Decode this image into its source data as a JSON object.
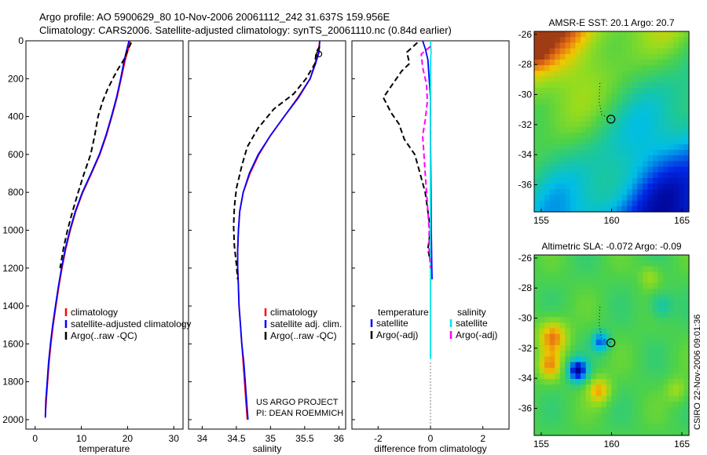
{
  "figure": {
    "title_line1": "Argo profile: AO 5900629_80 10-Nov-2006 20061112_242 31.637S 159.956E",
    "title_line2": "Climatology: CARS2006. Satellite-adjusted climatology: synTS_20061110.nc (0.84d earlier)",
    "side_label": "CSIRO 22-Nov-2006 09:01:36",
    "project_line1": "US ARGO PROJECT",
    "project_line2": "PI: DEAN ROEMMICH"
  },
  "colors": {
    "climatology": "#ff0000",
    "satellite": "#0000ff",
    "argo": "#000000",
    "sal_satellite": "#00e5e5",
    "sal_argo": "#ff00ff"
  },
  "chart_data": [
    {
      "id": "temperature",
      "type": "line",
      "xlabel": "temperature",
      "ylabel": "",
      "xlim": [
        -2,
        32
      ],
      "ylim": [
        0,
        2050
      ],
      "y_reversed": true,
      "x_ticks": [
        0,
        10,
        20,
        30
      ],
      "y_ticks": [
        0,
        200,
        400,
        600,
        800,
        1000,
        1200,
        1400,
        1600,
        1800,
        2000
      ],
      "legend": [
        "climatology",
        "satellite-adjusted climatology",
        "Argo(..raw -QC)"
      ],
      "series": [
        {
          "name": "climatology",
          "style": "solid",
          "color": "#ff0000",
          "points": [
            [
              20.6,
              0
            ],
            [
              20.2,
              40
            ],
            [
              19.5,
              100
            ],
            [
              18.6,
              200
            ],
            [
              17.7,
              300
            ],
            [
              16.6,
              400
            ],
            [
              15.4,
              500
            ],
            [
              14.0,
              600
            ],
            [
              12.2,
              700
            ],
            [
              10.3,
              800
            ],
            [
              8.8,
              900
            ],
            [
              7.6,
              1000
            ],
            [
              6.6,
              1100
            ],
            [
              5.8,
              1200
            ],
            [
              5.1,
              1300
            ],
            [
              4.5,
              1400
            ],
            [
              3.9,
              1500
            ],
            [
              3.4,
              1600
            ],
            [
              3.0,
              1700
            ],
            [
              2.7,
              1800
            ],
            [
              2.4,
              1900
            ],
            [
              2.2,
              1980
            ]
          ]
        },
        {
          "name": "satellite-adjusted climatology",
          "style": "solid",
          "color": "#0000ff",
          "points": [
            [
              20.3,
              0
            ],
            [
              19.9,
              40
            ],
            [
              19.3,
              100
            ],
            [
              18.5,
              200
            ],
            [
              17.6,
              300
            ],
            [
              16.5,
              400
            ],
            [
              15.3,
              500
            ],
            [
              13.9,
              600
            ],
            [
              12.1,
              700
            ],
            [
              10.2,
              800
            ],
            [
              8.7,
              900
            ],
            [
              7.5,
              1000
            ],
            [
              6.5,
              1100
            ],
            [
              5.7,
              1200
            ],
            [
              5.0,
              1300
            ],
            [
              4.4,
              1400
            ],
            [
              3.8,
              1500
            ],
            [
              3.3,
              1600
            ],
            [
              2.9,
              1700
            ],
            [
              2.6,
              1800
            ],
            [
              2.3,
              1900
            ],
            [
              2.2,
              1990
            ]
          ]
        },
        {
          "name": "Argo(..raw -QC)",
          "style": "dashed",
          "color": "#000000",
          "points": [
            [
              20.8,
              10
            ],
            [
              20.0,
              50
            ],
            [
              19.2,
              100
            ],
            [
              17.9,
              150
            ],
            [
              16.8,
              200
            ],
            [
              15.6,
              260
            ],
            [
              14.6,
              320
            ],
            [
              13.6,
              400
            ],
            [
              12.9,
              500
            ],
            [
              12.0,
              600
            ],
            [
              10.6,
              700
            ],
            [
              9.3,
              800
            ],
            [
              8.1,
              900
            ],
            [
              7.0,
              1000
            ],
            [
              6.1,
              1100
            ],
            [
              5.4,
              1200
            ]
          ]
        }
      ]
    },
    {
      "id": "salinity",
      "type": "line",
      "xlabel": "salinity",
      "ylabel": "",
      "xlim": [
        33.8,
        36.1
      ],
      "ylim": [
        0,
        2050
      ],
      "y_reversed": true,
      "x_ticks": [
        34,
        34.5,
        35,
        35.5,
        36
      ],
      "legend": [
        "climatology",
        "satellite adj. clim.",
        "Argo(..raw -QC)"
      ],
      "series": [
        {
          "name": "climatology",
          "style": "solid",
          "color": "#ff0000",
          "points": [
            [
              35.72,
              0
            ],
            [
              35.7,
              60
            ],
            [
              35.65,
              120
            ],
            [
              35.58,
              200
            ],
            [
              35.4,
              300
            ],
            [
              35.2,
              400
            ],
            [
              35.0,
              500
            ],
            [
              34.83,
              600
            ],
            [
              34.7,
              700
            ],
            [
              34.6,
              800
            ],
            [
              34.55,
              900
            ],
            [
              34.53,
              1000
            ],
            [
              34.52,
              1100
            ],
            [
              34.52,
              1200
            ],
            [
              34.53,
              1300
            ],
            [
              34.54,
              1400
            ],
            [
              34.56,
              1500
            ],
            [
              34.58,
              1600
            ],
            [
              34.6,
              1700
            ],
            [
              34.62,
              1800
            ],
            [
              34.64,
              1900
            ],
            [
              34.66,
              2000
            ]
          ]
        },
        {
          "name": "satellite adj. clim.",
          "style": "solid",
          "color": "#0000ff",
          "points": [
            [
              35.72,
              0
            ],
            [
              35.71,
              60
            ],
            [
              35.66,
              120
            ],
            [
              35.58,
              200
            ],
            [
              35.41,
              300
            ],
            [
              35.2,
              400
            ],
            [
              35.0,
              500
            ],
            [
              34.82,
              600
            ],
            [
              34.69,
              700
            ],
            [
              34.6,
              800
            ],
            [
              34.55,
              900
            ],
            [
              34.53,
              1000
            ],
            [
              34.52,
              1100
            ],
            [
              34.52,
              1200
            ],
            [
              34.53,
              1300
            ],
            [
              34.54,
              1400
            ],
            [
              34.56,
              1500
            ],
            [
              34.58,
              1600
            ],
            [
              34.61,
              1700
            ],
            [
              34.63,
              1800
            ],
            [
              34.65,
              1900
            ],
            [
              34.67,
              2000
            ]
          ]
        },
        {
          "name": "Argo(..raw -QC)",
          "style": "dashed",
          "color": "#000000",
          "points": [
            [
              35.72,
              30
            ],
            [
              35.67,
              60
            ],
            [
              35.65,
              120
            ],
            [
              35.52,
              200
            ],
            [
              35.34,
              280
            ],
            [
              35.05,
              360
            ],
            [
              34.82,
              460
            ],
            [
              34.66,
              560
            ],
            [
              34.58,
              660
            ],
            [
              34.5,
              780
            ],
            [
              34.47,
              880
            ],
            [
              34.46,
              980
            ],
            [
              34.47,
              1080
            ],
            [
              34.5,
              1180
            ],
            [
              34.52,
              1260
            ]
          ]
        }
      ]
    },
    {
      "id": "difference",
      "type": "line",
      "xlabel": "difference from climatology",
      "ylabel": "",
      "xlim": [
        -3,
        3
      ],
      "ylim": [
        0,
        2050
      ],
      "y_reversed": true,
      "x_ticks": [
        -2,
        0,
        2
      ],
      "legend_temperature_header": "temperature",
      "legend_salinity_header": "salinity",
      "legend": [
        "satellite",
        "Argo(-adj)",
        "satellite",
        "Argo(-adj)"
      ],
      "series": [
        {
          "name": "temperature satellite",
          "style": "solid",
          "color": "#0000ff",
          "points": [
            [
              -0.3,
              0
            ],
            [
              -0.2,
              40
            ],
            [
              -0.1,
              100
            ],
            [
              -0.05,
              200
            ],
            [
              0.0,
              300
            ],
            [
              0.0,
              500
            ],
            [
              0.02,
              800
            ],
            [
              0.03,
              1000
            ],
            [
              0.05,
              1200
            ],
            [
              0.06,
              1260
            ]
          ]
        },
        {
          "name": "temperature Argo(-adj)",
          "style": "dashed",
          "color": "#000000",
          "points": [
            [
              -0.5,
              10
            ],
            [
              -0.9,
              60
            ],
            [
              -0.8,
              120
            ],
            [
              -1.1,
              160
            ],
            [
              -1.8,
              300
            ],
            [
              -1.5,
              380
            ],
            [
              -1.2,
              440
            ],
            [
              -1.0,
              520
            ],
            [
              -0.6,
              600
            ],
            [
              -0.4,
              700
            ],
            [
              -0.2,
              800
            ],
            [
              -0.1,
              900
            ],
            [
              0.0,
              1000
            ],
            [
              -0.1,
              1100
            ],
            [
              0.05,
              1200
            ]
          ]
        },
        {
          "name": "salinity satellite",
          "style": "solid",
          "color": "#00e5e5",
          "points": [
            [
              0.0,
              0
            ],
            [
              0.02,
              60
            ],
            [
              0.0,
              120
            ],
            [
              0.0,
              200
            ],
            [
              0.0,
              400
            ],
            [
              0.0,
              800
            ],
            [
              0.0,
              1200
            ],
            [
              0.0,
              1600
            ],
            [
              0.0,
              1680
            ]
          ]
        },
        {
          "name": "salinity Argo(-adj)",
          "style": "dashed",
          "color": "#ff00ff",
          "points": [
            [
              0.0,
              30
            ],
            [
              -0.35,
              70
            ],
            [
              -0.3,
              140
            ],
            [
              -0.15,
              230
            ],
            [
              -0.12,
              320
            ],
            [
              -0.2,
              420
            ],
            [
              -0.3,
              500
            ],
            [
              -0.25,
              600
            ],
            [
              -0.2,
              700
            ],
            [
              -0.15,
              800
            ],
            [
              -0.1,
              900
            ],
            [
              -0.05,
              1000
            ],
            [
              -0.05,
              1100
            ],
            [
              0.0,
              1200
            ]
          ]
        }
      ]
    },
    {
      "id": "amsr",
      "type": "heatmap",
      "title": "AMSR-E SST: 20.1  Argo: 20.7",
      "xlim": [
        154.5,
        165.5
      ],
      "ylim": [
        -37.8,
        -25.8
      ],
      "x_ticks": [
        155,
        160,
        165
      ],
      "y_ticks": [
        -26,
        -28,
        -30,
        -32,
        -34,
        -36
      ],
      "marker": [
        159.956,
        -31.637
      ]
    },
    {
      "id": "sla",
      "type": "heatmap",
      "title": "Altimetric SLA: -0.072  Argo: -0.09",
      "xlim": [
        154.5,
        165.5
      ],
      "ylim": [
        -37.8,
        -25.8
      ],
      "x_ticks": [
        155,
        160,
        165
      ],
      "y_ticks": [
        -26,
        -28,
        -30,
        -32,
        -34,
        -36
      ],
      "marker": [
        159.956,
        -31.637
      ]
    }
  ]
}
